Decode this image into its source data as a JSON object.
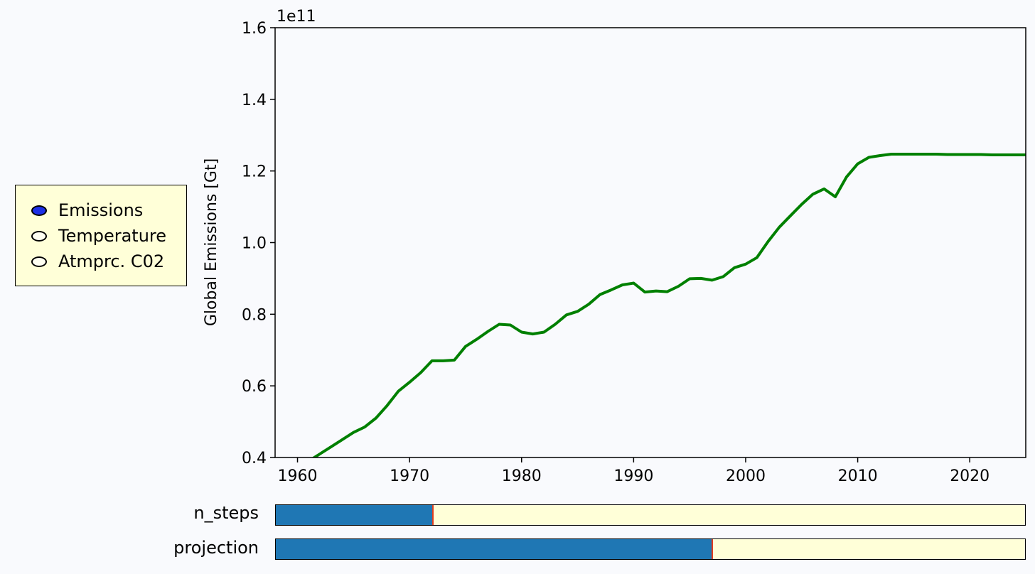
{
  "chart_data": {
    "type": "line",
    "title": "",
    "xlabel": "",
    "ylabel": "Global Emissions [Gt]",
    "offset_text": "1e11",
    "xlim": [
      1958,
      2025
    ],
    "ylim": [
      0.4,
      1.6
    ],
    "y_scale_factor": 100000000000,
    "xticks": [
      1960,
      1970,
      1980,
      1990,
      2000,
      2010,
      2020
    ],
    "yticks": [
      "0.4",
      "0.6",
      "0.8",
      "1.0",
      "1.2",
      "1.4",
      "1.6"
    ],
    "ytick_values": [
      0.4,
      0.6,
      0.8,
      1.0,
      1.2,
      1.4,
      1.6
    ],
    "grid": false,
    "series": [
      {
        "color": "#008000",
        "x": [
          1961,
          1962,
          1963,
          1964,
          1965,
          1966,
          1967,
          1968,
          1969,
          1970,
          1971,
          1972,
          1973,
          1974,
          1975,
          1976,
          1977,
          1978,
          1979,
          1980,
          1981,
          1982,
          1983,
          1984,
          1985,
          1986,
          1987,
          1988,
          1989,
          1990,
          1991,
          1992,
          1993,
          1994,
          1995,
          1996,
          1997,
          1998,
          1999,
          2000,
          2001,
          2002,
          2003,
          2004,
          2005,
          2006,
          2007,
          2008,
          2009,
          2010,
          2011,
          2012,
          2013,
          2014,
          2015,
          2016,
          2017,
          2018,
          2019,
          2020,
          2021,
          2022,
          2023,
          2024,
          2025
        ],
        "y": [
          0.39,
          0.41,
          0.43,
          0.45,
          0.47,
          0.485,
          0.51,
          0.545,
          0.585,
          0.61,
          0.637,
          0.67,
          0.67,
          0.672,
          0.71,
          0.73,
          0.752,
          0.772,
          0.77,
          0.75,
          0.745,
          0.75,
          0.772,
          0.798,
          0.808,
          0.828,
          0.855,
          0.868,
          0.882,
          0.887,
          0.862,
          0.865,
          0.863,
          0.878,
          0.899,
          0.9,
          0.895,
          0.905,
          0.93,
          0.94,
          0.958,
          1.003,
          1.043,
          1.075,
          1.107,
          1.135,
          1.15,
          1.128,
          1.183,
          1.22,
          1.238,
          1.243,
          1.247,
          1.247,
          1.247,
          1.247,
          1.247,
          1.246,
          1.246,
          1.246,
          1.246,
          1.245,
          1.245,
          1.245,
          1.245
        ]
      }
    ]
  },
  "radio": {
    "options": [
      {
        "label": "Emissions",
        "selected": true
      },
      {
        "label": "Temperature",
        "selected": false
      },
      {
        "label": "Atmprc. C02",
        "selected": false
      }
    ],
    "active_color": "#1c2fe6"
  },
  "sliders": [
    {
      "label": "n_steps",
      "fraction": 0.21,
      "fill_color": "#1f77b4",
      "handle_color": "#e03c1e"
    },
    {
      "label": "projection",
      "fraction": 0.583,
      "fill_color": "#1f77b4",
      "handle_color": "#e03c1e"
    }
  ]
}
